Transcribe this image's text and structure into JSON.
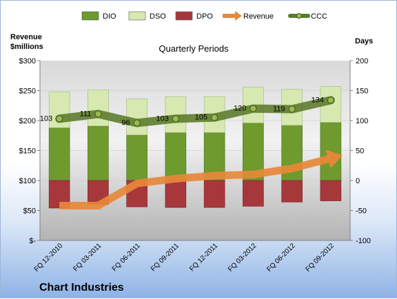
{
  "chart_data": {
    "type": "bar",
    "title": "Quarterly Periods",
    "company": "Chart Industries",
    "left_axis_label_line1": "Revenue",
    "left_axis_label_line2": "$millions",
    "right_axis_label": "Days",
    "categories": [
      "FQ 12-2010",
      "FQ 03-2011",
      "FQ 06-2011",
      "FQ 09-2011",
      "FQ 12-2011",
      "FQ 03-2012",
      "FQ 06-2012",
      "FQ 09-2012"
    ],
    "left_ylim": [
      0,
      300
    ],
    "left_ticks": [
      "$-",
      "$50",
      "$100",
      "$150",
      "$200",
      "$250",
      "$300"
    ],
    "right_ylim": [
      -100,
      200
    ],
    "right_ticks": [
      "-100",
      "-50",
      "0",
      "50",
      "100",
      "150",
      "200"
    ],
    "legend_position": "top",
    "series": [
      {
        "name": "DIO",
        "kind": "bar",
        "axis": "right",
        "color": "#6e9a2e",
        "values": [
          88,
          91,
          76,
          80,
          80,
          96,
          92,
          97
        ]
      },
      {
        "name": "DSO",
        "kind": "bar",
        "axis": "right",
        "color": "#d7e8b0",
        "values": [
          60,
          60,
          60,
          60,
          60,
          60,
          60,
          60
        ]
      },
      {
        "name": "DPO",
        "kind": "bar",
        "axis": "right",
        "color": "#a6383c",
        "values": [
          -46,
          -40,
          -44,
          -45,
          -45,
          -43,
          -36,
          -34
        ]
      },
      {
        "name": "Revenue",
        "kind": "line",
        "axis": "left",
        "color": "#e8883a",
        "values": [
          58,
          58,
          95,
          103,
          108,
          110,
          120,
          137
        ]
      },
      {
        "name": "CCC",
        "kind": "line",
        "axis": "right",
        "color": "#5b7a2a",
        "values": [
          103,
          111,
          96,
          103,
          105,
          120,
          119,
          134
        ],
        "labels": [
          "103",
          "111",
          "96",
          "103",
          "105",
          "120",
          "119",
          "134"
        ]
      }
    ]
  }
}
